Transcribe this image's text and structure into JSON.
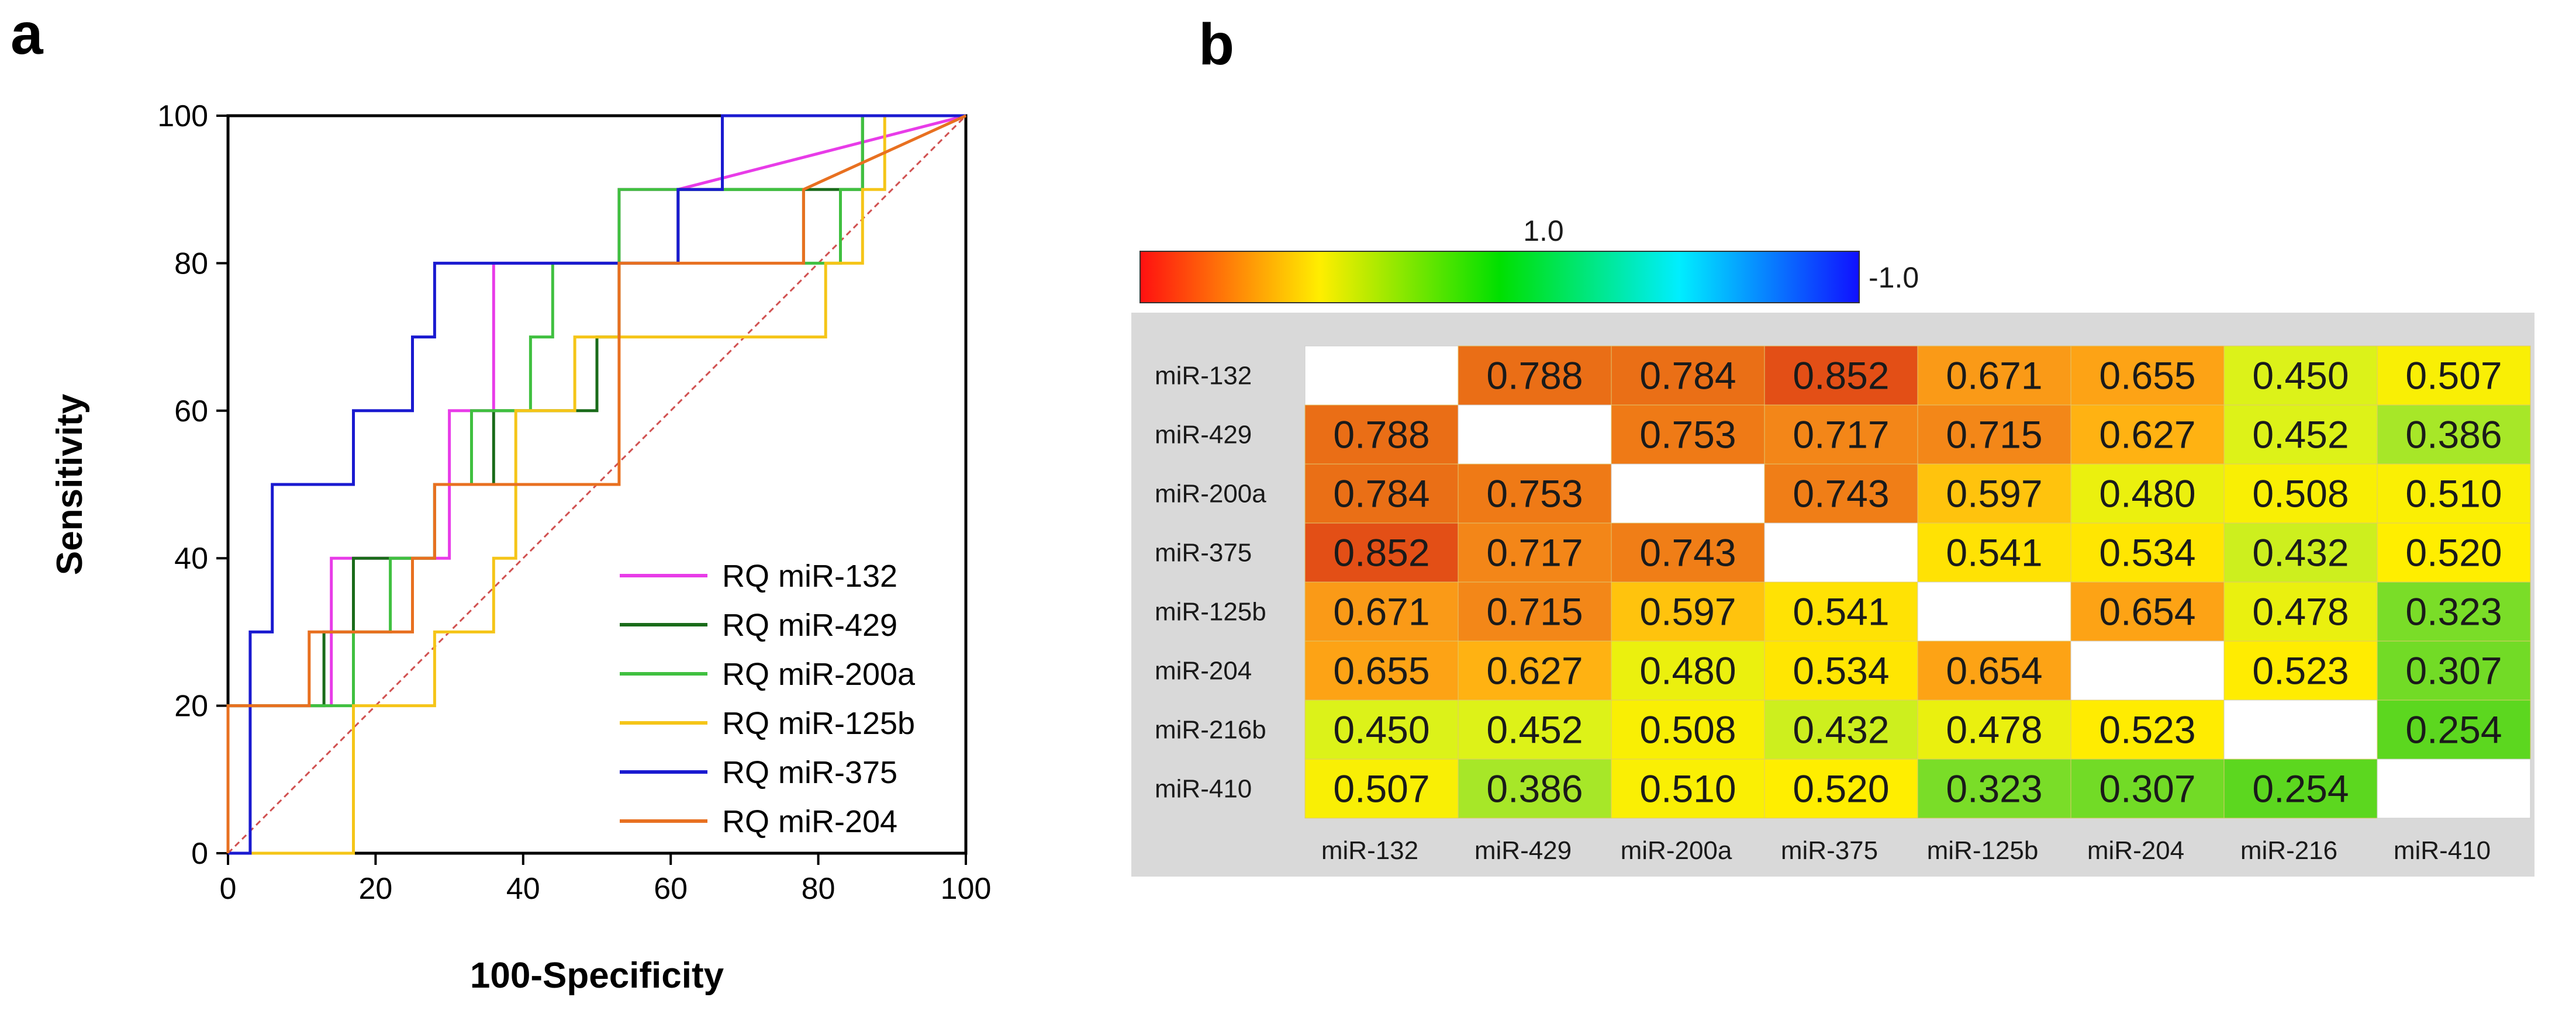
{
  "panels": {
    "a": "a",
    "b": "b"
  },
  "chart_data": [
    {
      "type": "line",
      "xlabel": "100-Specificity",
      "ylabel": "Sensitivity",
      "xlim": [
        0,
        100
      ],
      "ylim": [
        0,
        100
      ],
      "xticks": [
        0,
        20,
        40,
        60,
        80,
        100
      ],
      "yticks": [
        0,
        20,
        40,
        60,
        80,
        100
      ],
      "legend_position": "bottom-right",
      "reference_line": {
        "x": [
          0,
          100
        ],
        "y": [
          0,
          100
        ],
        "color": "#d05050"
      },
      "series": [
        {
          "name": "RQ miR-132",
          "color": "#e83ce8",
          "x": [
            0,
            0,
            14,
            14,
            30,
            30,
            36,
            36,
            53,
            53,
            61,
            61,
            100
          ],
          "y": [
            0,
            20,
            20,
            40,
            40,
            60,
            60,
            80,
            80,
            90,
            90,
            90,
            100
          ]
        },
        {
          "name": "RQ miR-429",
          "color": "#1a6b1a",
          "x": [
            0,
            0,
            13,
            13,
            17,
            17,
            28,
            28,
            36,
            36,
            50,
            50,
            53,
            53,
            61,
            61,
            78,
            78,
            86,
            86,
            100
          ],
          "y": [
            0,
            20,
            20,
            30,
            30,
            40,
            40,
            50,
            50,
            60,
            60,
            70,
            70,
            80,
            80,
            90,
            90,
            90,
            90,
            100,
            100
          ]
        },
        {
          "name": "RQ miR-200a",
          "color": "#40c040",
          "x": [
            0,
            0,
            17,
            17,
            22,
            22,
            28,
            28,
            33,
            33,
            41,
            41,
            44,
            44,
            53,
            53,
            78,
            78,
            83,
            83,
            86,
            86,
            100
          ],
          "y": [
            0,
            20,
            20,
            30,
            30,
            40,
            40,
            50,
            50,
            60,
            60,
            70,
            70,
            80,
            80,
            90,
            90,
            80,
            80,
            90,
            90,
            100,
            100
          ]
        },
        {
          "name": "RQ miR-125b",
          "color": "#f5c518",
          "x": [
            0,
            3,
            3,
            17,
            17,
            22,
            22,
            28,
            28,
            36,
            36,
            39,
            39,
            47,
            47,
            53,
            53,
            81,
            81,
            86,
            86,
            89,
            89,
            100
          ],
          "y": [
            0,
            0,
            0,
            0,
            20,
            20,
            20,
            20,
            30,
            30,
            40,
            40,
            60,
            60,
            70,
            70,
            70,
            70,
            80,
            80,
            90,
            90,
            100,
            100
          ]
        },
        {
          "name": "RQ miR-375",
          "color": "#1a1ad0",
          "x": [
            0,
            3,
            3,
            6,
            6,
            17,
            17,
            22,
            22,
            25,
            25,
            28,
            28,
            61,
            61,
            67,
            67,
            100
          ],
          "y": [
            0,
            0,
            30,
            30,
            50,
            50,
            60,
            60,
            60,
            60,
            70,
            70,
            80,
            80,
            90,
            90,
            100,
            100
          ]
        },
        {
          "name": "RQ miR-204",
          "color": "#e87020",
          "x": [
            0,
            0,
            11,
            11,
            25,
            25,
            28,
            28,
            53,
            53,
            78,
            78,
            100
          ],
          "y": [
            0,
            20,
            20,
            30,
            30,
            40,
            40,
            50,
            50,
            80,
            80,
            90,
            100
          ]
        }
      ]
    },
    {
      "type": "heatmap",
      "colorbar": {
        "top_label": "1.0",
        "right_label": "-1.0",
        "colors": [
          "#ff1010",
          "#ffee00",
          "#00e000",
          "#00eeff",
          "#1010ff"
        ]
      },
      "row_labels": [
        "miR-132",
        "miR-429",
        "miR-200a",
        "miR-375",
        "miR-125b",
        "miR-204",
        "miR-216b",
        "miR-410"
      ],
      "col_labels": [
        "miR-132",
        "miR-429",
        "miR-200a",
        "miR-375",
        "miR-125b",
        "miR-204",
        "miR-216",
        "miR-410"
      ],
      "values": [
        [
          null,
          "0.788",
          "0.784",
          "0.852",
          "0.671",
          "0.655",
          "0.450",
          "0.507"
        ],
        [
          "0.788",
          null,
          "0.753",
          "0.717",
          "0.715",
          "0.627",
          "0.452",
          "0.386"
        ],
        [
          "0.784",
          "0.753",
          null,
          "0.743",
          "0.597",
          "0.480",
          "0.508",
          "0.510"
        ],
        [
          "0.852",
          "0.717",
          "0.743",
          null,
          "0.541",
          "0.534",
          "0.432",
          "0.520"
        ],
        [
          "0.671",
          "0.715",
          "0.597",
          "0.541",
          null,
          "0.654",
          "0.478",
          "0.323"
        ],
        [
          "0.655",
          "0.627",
          "0.480",
          "0.534",
          "0.654",
          null,
          "0.523",
          "0.307"
        ],
        [
          "0.450",
          "0.452",
          "0.508",
          "0.432",
          "0.478",
          "0.523",
          null,
          "0.254"
        ],
        [
          "0.507",
          "0.386",
          "0.510",
          "0.520",
          "0.323",
          "0.307",
          "0.254",
          null
        ]
      ]
    }
  ]
}
